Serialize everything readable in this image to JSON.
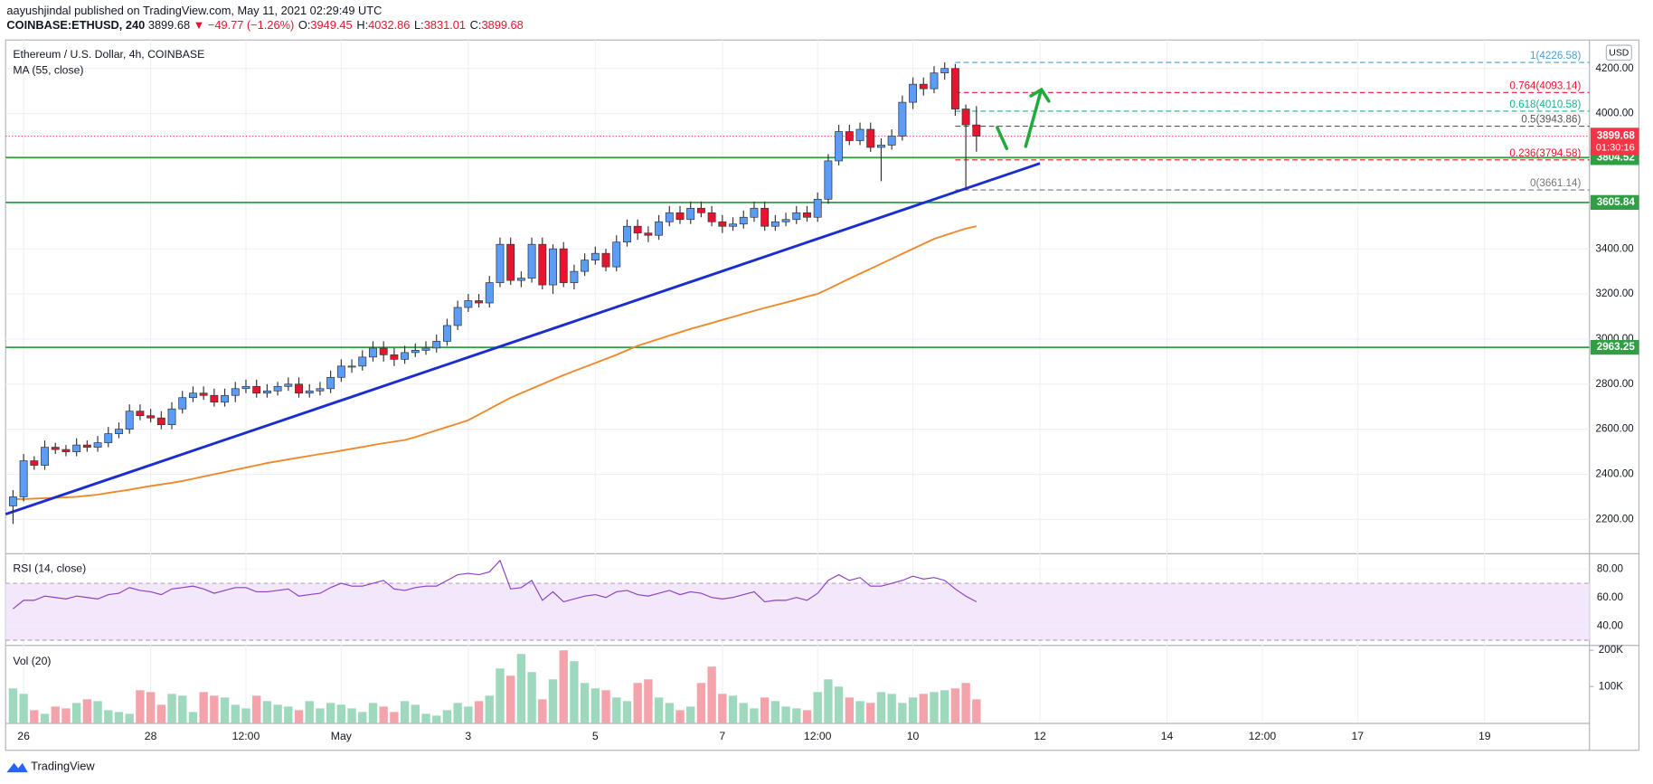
{
  "header": {
    "line1": "aayushjindal published on TradingView.com, May 11, 2021 02:29:49 UTC",
    "symbol": "COINBASE:ETHUSD, 240",
    "last": "3899.68",
    "change": "▼ −49.77 (−1.26%)",
    "ohlc": [
      {
        "key": "O:",
        "value": "3949.45"
      },
      {
        "key": "H:",
        "value": "4032.86"
      },
      {
        "key": "L:",
        "value": "3831.01"
      },
      {
        "key": "C:",
        "value": "3899.68"
      }
    ]
  },
  "footer": "TradingView",
  "chart_data": {
    "type": "candlestick",
    "title": "Ethereum / U.S. Dollar, 4h, COINBASE",
    "currency": "USD",
    "up_color": "#5b9cf6",
    "down_color": "#e8142f",
    "xlim": [
      -0.7,
      148.9
    ],
    "xticks": [
      {
        "value": 1,
        "label": "26"
      },
      {
        "value": 13,
        "label": "28"
      },
      {
        "value": 22,
        "label": "12:00"
      },
      {
        "value": 31,
        "label": "May"
      },
      {
        "value": 43,
        "label": "3"
      },
      {
        "value": 55,
        "label": "5"
      },
      {
        "value": 67,
        "label": "7"
      },
      {
        "value": 76,
        "label": "12:00"
      },
      {
        "value": 85,
        "label": "10"
      },
      {
        "value": 97,
        "label": "12"
      },
      {
        "value": 109,
        "label": "14"
      },
      {
        "value": 118,
        "label": "12:00"
      },
      {
        "value": 127,
        "label": "17"
      },
      {
        "value": 139,
        "label": "19"
      }
    ],
    "ylim": [
      2050,
      4326
    ],
    "yticks": [
      {
        "value": 2200,
        "label": "2200.00"
      },
      {
        "value": 2400,
        "label": "2400.00"
      },
      {
        "value": 2600,
        "label": "2600.00"
      },
      {
        "value": 2800,
        "label": "2800.00"
      },
      {
        "value": 3000,
        "label": "3000.00"
      },
      {
        "value": 3200,
        "label": "3200.00"
      },
      {
        "value": 3400,
        "label": "3400.00"
      },
      {
        "value": 3600,
        "label": "3600.00"
      },
      {
        "value": 3800,
        "label": "3800.00"
      },
      {
        "value": 4000,
        "label": "4000.00"
      },
      {
        "value": 4200,
        "label": "4200.00"
      }
    ],
    "open": [
      2260,
      2300,
      2460,
      2440,
      2520,
      2510,
      2500,
      2530,
      2520,
      2540,
      2580,
      2600,
      2680,
      2660,
      2650,
      2620,
      2690,
      2740,
      2760,
      2750,
      2720,
      2750,
      2780,
      2790,
      2760,
      2770,
      2790,
      2800,
      2760,
      2770,
      2780,
      2830,
      2880,
      2880,
      2920,
      2960,
      2930,
      2910,
      2940,
      2950,
      2960,
      2990,
      3060,
      3140,
      3170,
      3160,
      3250,
      3420,
      3260,
      3270,
      3420,
      3240,
      3400,
      3250,
      3300,
      3350,
      3380,
      3320,
      3430,
      3500,
      3470,
      3460,
      3520,
      3560,
      3530,
      3580,
      3560,
      3520,
      3500,
      3510,
      3540,
      3580,
      3500,
      3520,
      3530,
      3560,
      3540,
      3620,
      3790,
      3920,
      3880,
      3930,
      3850,
      3860,
      3900,
      4050,
      4130,
      4110,
      4180,
      4200,
      4020,
      3949.45
    ],
    "high": [
      2330,
      2490,
      2480,
      2550,
      2540,
      2530,
      2560,
      2550,
      2570,
      2610,
      2630,
      2710,
      2710,
      2690,
      2680,
      2720,
      2770,
      2790,
      2790,
      2780,
      2780,
      2810,
      2820,
      2820,
      2800,
      2810,
      2830,
      2830,
      2800,
      2810,
      2860,
      2910,
      2910,
      2950,
      2990,
      2990,
      2960,
      2970,
      2980,
      2990,
      3020,
      3090,
      3170,
      3200,
      3200,
      3280,
      3450,
      3450,
      3300,
      3450,
      3450,
      3420,
      3430,
      3330,
      3380,
      3410,
      3400,
      3460,
      3530,
      3530,
      3500,
      3550,
      3590,
      3590,
      3610,
      3610,
      3590,
      3550,
      3540,
      3570,
      3610,
      3610,
      3550,
      3560,
      3590,
      3590,
      3650,
      3820,
      3950,
      3950,
      3960,
      3960,
      3890,
      3930,
      4080,
      4160,
      4160,
      4210,
      4226.58,
      4220,
      4040,
      4032.86
    ],
    "low": [
      2180,
      2280,
      2420,
      2420,
      2490,
      2480,
      2480,
      2500,
      2500,
      2520,
      2560,
      2580,
      2640,
      2630,
      2600,
      2600,
      2670,
      2720,
      2730,
      2700,
      2700,
      2720,
      2760,
      2740,
      2740,
      2750,
      2770,
      2740,
      2740,
      2750,
      2760,
      2810,
      2850,
      2860,
      2900,
      2900,
      2880,
      2890,
      2920,
      2930,
      2940,
      2970,
      3040,
      3120,
      3140,
      3140,
      3230,
      3240,
      3230,
      3250,
      3220,
      3200,
      3230,
      3220,
      3280,
      3330,
      3300,
      3300,
      3410,
      3440,
      3430,
      3440,
      3500,
      3510,
      3510,
      3540,
      3500,
      3470,
      3480,
      3490,
      3520,
      3480,
      3480,
      3500,
      3510,
      3520,
      3520,
      3600,
      3770,
      3860,
      3860,
      3830,
      3700,
      3840,
      3880,
      4020,
      4080,
      4090,
      4150,
      3990,
      3661.14,
      3831.01
    ],
    "close": [
      2300,
      2460,
      2440,
      2520,
      2510,
      2500,
      2530,
      2520,
      2540,
      2580,
      2600,
      2680,
      2660,
      2650,
      2620,
      2690,
      2740,
      2760,
      2750,
      2720,
      2750,
      2780,
      2790,
      2760,
      2770,
      2790,
      2800,
      2760,
      2770,
      2780,
      2830,
      2880,
      2880,
      2920,
      2960,
      2930,
      2910,
      2940,
      2950,
      2960,
      2990,
      3060,
      3140,
      3170,
      3160,
      3250,
      3420,
      3260,
      3270,
      3420,
      3240,
      3400,
      3250,
      3300,
      3350,
      3380,
      3320,
      3430,
      3500,
      3470,
      3460,
      3520,
      3560,
      3530,
      3580,
      3560,
      3520,
      3500,
      3510,
      3540,
      3580,
      3500,
      3520,
      3530,
      3560,
      3540,
      3620,
      3790,
      3920,
      3880,
      3930,
      3850,
      3860,
      3900,
      4050,
      4130,
      4110,
      4180,
      4200,
      4020,
      3950,
      3899.68
    ],
    "ma": {
      "name": "MA (55, close)",
      "color": "#f0882a",
      "values": [
        2290,
        2290,
        2292,
        2294,
        2296,
        2298,
        2300,
        2305,
        2310,
        2318,
        2325,
        2332,
        2340,
        2348,
        2355,
        2362,
        2370,
        2380,
        2390,
        2400,
        2410,
        2420,
        2430,
        2440,
        2450,
        2458,
        2466,
        2474,
        2482,
        2490,
        2497,
        2505,
        2513,
        2521,
        2530,
        2538,
        2545,
        2552,
        2565,
        2580,
        2595,
        2610,
        2625,
        2640,
        2665,
        2690,
        2715,
        2740,
        2760,
        2780,
        2800,
        2820,
        2840,
        2858,
        2876,
        2894,
        2912,
        2930,
        2950,
        2970,
        2985,
        3000,
        3015,
        3030,
        3045,
        3058,
        3071,
        3085,
        3098,
        3112,
        3125,
        3138,
        3150,
        3162,
        3175,
        3188,
        3200,
        3222,
        3245,
        3268,
        3290,
        3312,
        3334,
        3356,
        3378,
        3400,
        3422,
        3444,
        3460,
        3475,
        3490,
        3500
      ]
    },
    "trendline": {
      "color": "#1a2dd1",
      "x": [
        -0.7,
        97
      ],
      "values": [
        2223,
        3779
      ]
    },
    "levels": {
      "color": "#2ea043",
      "values": [
        3804.52,
        3605.84,
        2963.25
      ]
    },
    "last_price": {
      "value": 3899.68,
      "countdown": "01:30:16",
      "color": "#f23645"
    },
    "fib": {
      "start": 89,
      "levels": [
        {
          "value": 4226.58,
          "label": "1(4226.58)",
          "color": "#4a9fd4"
        },
        {
          "value": 4093.14,
          "label": "0.764(4093.14)",
          "color": "#e8142f"
        },
        {
          "value": 4010.58,
          "label": "0.618(4010.58)",
          "color": "#22ab94"
        },
        {
          "value": 3943.86,
          "label": "0.5(3943.86)",
          "color": "#555555"
        },
        {
          "value": 3794.58,
          "label": "0.236(3794.58)",
          "color": "#e8142f"
        },
        {
          "value": 3661.14,
          "label": "0(3661.14)",
          "color": "#777777"
        }
      ]
    },
    "rsi": {
      "name": "RSI (14, close)",
      "color": "#8e3fc4",
      "ylim": [
        26.7,
        90.4
      ],
      "band": [
        30,
        70
      ],
      "yticks": [
        {
          "value": 40,
          "label": "40.00"
        },
        {
          "value": 60,
          "label": "60.00"
        },
        {
          "value": 80,
          "label": "80.00"
        }
      ],
      "values": [
        52,
        58,
        58,
        61,
        60,
        59,
        61,
        60,
        59,
        62,
        63,
        67,
        65,
        64,
        62,
        66,
        67,
        68,
        66,
        63,
        65,
        67,
        67,
        64,
        64,
        65,
        66,
        61,
        62,
        63,
        67,
        70,
        68,
        68,
        70,
        72,
        66,
        65,
        67,
        68,
        68,
        72,
        76,
        77,
        76,
        78,
        86,
        66,
        67,
        72,
        58,
        64,
        57,
        59,
        61,
        62,
        60,
        64,
        65,
        62,
        61,
        63,
        65,
        62,
        64,
        63,
        60,
        59,
        60,
        62,
        64,
        57,
        58,
        58,
        60,
        58,
        63,
        72,
        76,
        72,
        74,
        68,
        68,
        70,
        72,
        75,
        73,
        74,
        72,
        66,
        61,
        57
      ]
    },
    "volume": {
      "name": "Vol (20)",
      "up_color": "#9fd9bd",
      "down_color": "#f4a3ab",
      "ylim": [
        0,
        212
      ],
      "yticks": [
        {
          "value": 100,
          "label": "100K"
        },
        {
          "value": 200,
          "label": "200K"
        }
      ],
      "values": [
        95,
        80,
        35,
        25,
        45,
        40,
        55,
        65,
        60,
        35,
        30,
        25,
        90,
        85,
        50,
        80,
        75,
        30,
        85,
        75,
        70,
        50,
        40,
        75,
        60,
        50,
        45,
        35,
        60,
        40,
        55,
        50,
        40,
        30,
        55,
        45,
        30,
        60,
        50,
        25,
        20,
        35,
        55,
        45,
        60,
        75,
        150,
        130,
        190,
        140,
        65,
        120,
        200,
        170,
        110,
        95,
        90,
        70,
        60,
        110,
        120,
        70,
        55,
        35,
        45,
        110,
        155,
        80,
        75,
        55,
        40,
        70,
        60,
        45,
        40,
        35,
        85,
        120,
        100,
        70,
        60,
        55,
        85,
        80,
        55,
        70,
        80,
        85,
        90,
        95,
        110,
        65
      ]
    }
  }
}
